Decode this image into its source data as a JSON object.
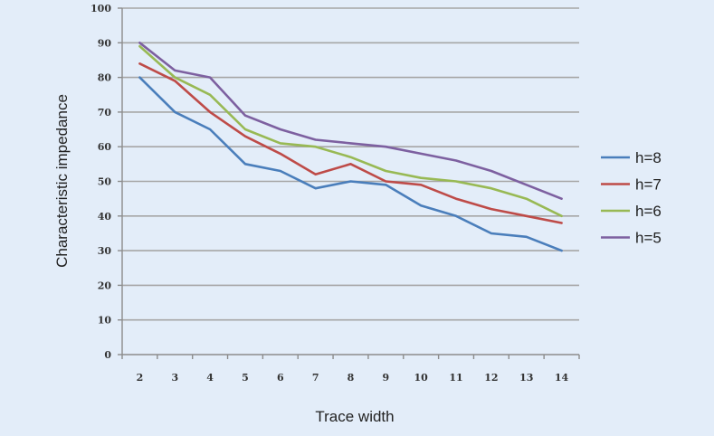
{
  "chart_data": {
    "type": "line",
    "title": "",
    "xlabel": "Trace width",
    "ylabel": "Characteristic impedance",
    "categories": [
      "2",
      "3",
      "4",
      "5",
      "6",
      "7",
      "8",
      "9",
      "10",
      "11",
      "12",
      "13",
      "14"
    ],
    "y_ticks": [
      "0",
      "10",
      "20",
      "30",
      "40",
      "50",
      "60",
      "70",
      "80",
      "90",
      "100"
    ],
    "ylim": [
      0,
      100
    ],
    "grid": true,
    "legend_position": "right",
    "series": [
      {
        "name": "h=8",
        "color": "#4a7ebb",
        "values": [
          80,
          70,
          65,
          55,
          53,
          48,
          50,
          49,
          43,
          40,
          35,
          34,
          30
        ]
      },
      {
        "name": "h=7",
        "color": "#be4b48",
        "values": [
          84,
          79,
          70,
          63,
          58,
          52,
          55,
          50,
          49,
          45,
          42,
          40,
          38
        ]
      },
      {
        "name": "h=6",
        "color": "#98b954",
        "values": [
          89,
          80,
          75,
          65,
          61,
          60,
          57,
          53,
          51,
          50,
          48,
          45,
          40
        ]
      },
      {
        "name": "h=5",
        "color": "#7d60a0",
        "values": [
          90,
          82,
          80,
          69,
          65,
          62,
          61,
          60,
          58,
          56,
          53,
          49,
          45
        ]
      }
    ]
  }
}
